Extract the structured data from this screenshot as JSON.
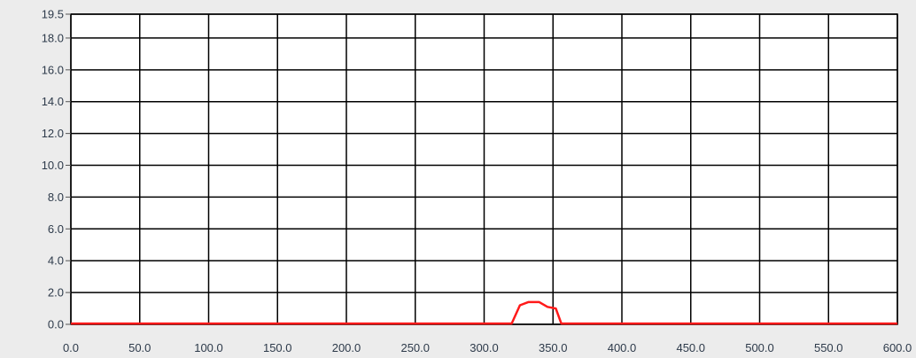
{
  "colors": {
    "background": "#ececec",
    "plot_area": "#ffffff",
    "grid": "#000000",
    "series": "#ff1a1a",
    "tick_text": "#2d3a4a"
  },
  "chart_data": {
    "type": "line",
    "title": "",
    "xlabel": "",
    "ylabel": "",
    "xlim": [
      0,
      600
    ],
    "ylim": [
      0,
      19.5
    ],
    "grid": true,
    "legend": "none",
    "x_ticks": [
      0,
      50,
      100,
      150,
      200,
      250,
      300,
      350,
      400,
      450,
      500,
      550,
      600
    ],
    "x_tick_labels": [
      "0.0",
      "50.0",
      "100.0",
      "150.0",
      "200.0",
      "250.0",
      "300.0",
      "350.0",
      "400.0",
      "450.0",
      "500.0",
      "550.0",
      "600.0"
    ],
    "y_ticks": [
      0,
      2,
      4,
      6,
      8,
      10,
      12,
      14,
      16,
      18,
      19.5
    ],
    "y_tick_labels": [
      "0.0",
      "2.0",
      "4.0",
      "6.0",
      "8.0",
      "10.0",
      "12.0",
      "14.0",
      "16.0",
      "18.0",
      "19.5"
    ],
    "series": [
      {
        "x": [
          0,
          50,
          100,
          150,
          200,
          250,
          300,
          320,
          326,
          332,
          340,
          346,
          352,
          356,
          400,
          450,
          500,
          550,
          600
        ],
        "y": [
          0.05,
          0.05,
          0.05,
          0.05,
          0.05,
          0.05,
          0.05,
          0.05,
          1.2,
          1.4,
          1.4,
          1.1,
          1.0,
          0.05,
          0.05,
          0.05,
          0.05,
          0.05,
          0.05
        ]
      }
    ]
  }
}
